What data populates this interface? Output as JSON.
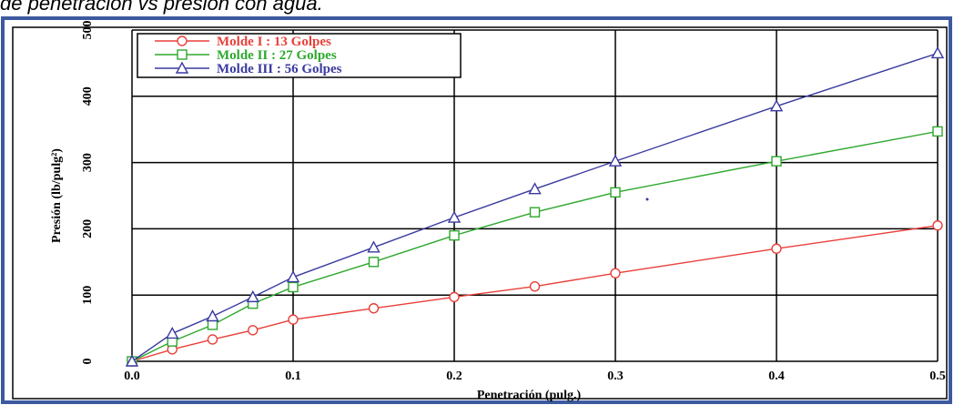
{
  "caption": "de penetración vs presión con agua.",
  "chart_data": {
    "type": "line",
    "xlabel": "Penetración (pulg.)",
    "ylabel": "Presión (lb/pulg²)",
    "xlim": [
      0,
      0.5
    ],
    "ylim": [
      0,
      500
    ],
    "x_ticks": [
      "0.0",
      "0.1",
      "0.2",
      "0.3",
      "0.4",
      "0.5"
    ],
    "y_ticks": [
      "0",
      "100",
      "200",
      "300",
      "400",
      "500"
    ],
    "grid": true,
    "legend_position": "top-left",
    "series": [
      {
        "name": "Molde I : 13 Golpes",
        "color": "#e8403a",
        "marker": "circle",
        "x": [
          0,
          0.025,
          0.05,
          0.075,
          0.1,
          0.15,
          0.2,
          0.25,
          0.3,
          0.4,
          0.5
        ],
        "y": [
          0,
          18,
          33,
          47,
          63,
          80,
          97,
          113,
          133,
          170,
          205
        ]
      },
      {
        "name": "Molde II : 27 Golpes",
        "color": "#2ea82e",
        "marker": "square",
        "x": [
          0,
          0.025,
          0.05,
          0.075,
          0.1,
          0.15,
          0.2,
          0.25,
          0.3,
          0.4,
          0.5
        ],
        "y": [
          0,
          30,
          55,
          87,
          112,
          150,
          190,
          225,
          255,
          302,
          347
        ]
      },
      {
        "name": "Molde III : 56 Golpes",
        "color": "#3a3aa0",
        "marker": "triangle",
        "x": [
          0,
          0.025,
          0.05,
          0.075,
          0.1,
          0.15,
          0.2,
          0.25,
          0.3,
          0.4,
          0.5
        ],
        "y": [
          0,
          42,
          68,
          97,
          127,
          172,
          217,
          260,
          302,
          385,
          465
        ]
      }
    ]
  }
}
